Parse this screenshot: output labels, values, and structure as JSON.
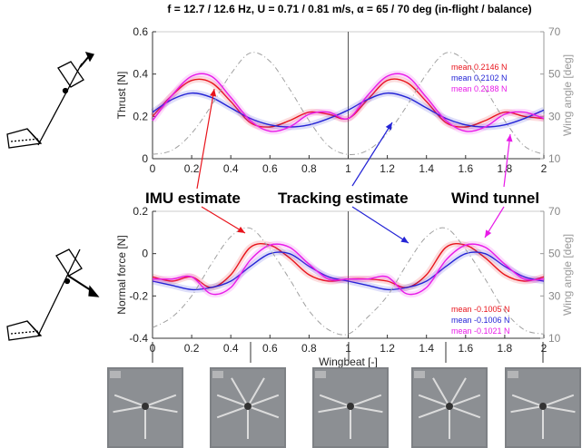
{
  "title": "f = 12.7 / 12.6 Hz, U = 0.71 / 0.81 m/s, α = 65 / 70 deg (in-flight / balance)",
  "colors": {
    "imu": "#e8141c",
    "tracking": "#2424d6",
    "wind": "#e81ae8",
    "angle": "#a0a0a0"
  },
  "annotations": {
    "imu": "IMU estimate",
    "tracking": "Tracking estimate",
    "wind": "Wind tunnel"
  },
  "chart_data": [
    {
      "type": "line",
      "ylabel": "Thrust [N]",
      "y2label": "Wing angle [deg]",
      "xlim": [
        0,
        2
      ],
      "ylim": [
        0,
        0.6
      ],
      "y2lim": [
        10,
        70
      ],
      "xticks": [
        "0",
        "0.2",
        "0.4",
        "0.6",
        "0.8",
        "1",
        "1.2",
        "1.4",
        "1.6",
        "1.8",
        "2"
      ],
      "yticks": [
        "0",
        "0.2",
        "0.4",
        "0.6"
      ],
      "y2ticks": [
        "10",
        "30",
        "50",
        "70"
      ],
      "x": [
        0,
        0.1,
        0.2,
        0.3,
        0.4,
        0.5,
        0.6,
        0.7,
        0.8,
        0.9,
        1.0,
        1.1,
        1.2,
        1.3,
        1.4,
        1.5,
        1.6,
        1.7,
        1.8,
        1.9,
        2.0
      ],
      "series": [
        {
          "key": "imu",
          "values": [
            0.2,
            0.3,
            0.37,
            0.36,
            0.27,
            0.17,
            0.15,
            0.18,
            0.22,
            0.21,
            0.19,
            0.28,
            0.37,
            0.36,
            0.27,
            0.17,
            0.15,
            0.18,
            0.22,
            0.2,
            0.19
          ]
        },
        {
          "key": "tracking",
          "values": [
            0.22,
            0.28,
            0.31,
            0.29,
            0.24,
            0.19,
            0.16,
            0.15,
            0.16,
            0.19,
            0.23,
            0.28,
            0.31,
            0.29,
            0.24,
            0.19,
            0.16,
            0.15,
            0.16,
            0.19,
            0.23
          ]
        },
        {
          "key": "wind",
          "values": [
            0.18,
            0.3,
            0.39,
            0.39,
            0.29,
            0.18,
            0.13,
            0.15,
            0.21,
            0.22,
            0.19,
            0.3,
            0.39,
            0.39,
            0.29,
            0.18,
            0.13,
            0.15,
            0.21,
            0.22,
            0.19
          ]
        },
        {
          "key": "angle",
          "axis": "y2",
          "values": [
            12,
            14,
            22,
            35,
            50,
            60,
            56,
            43,
            28,
            16,
            12,
            14,
            22,
            35,
            50,
            60,
            56,
            43,
            28,
            16,
            12
          ]
        }
      ],
      "means": [
        "mean 0.2146 N",
        "mean 0.2102 N",
        "mean 0.2188 N"
      ]
    },
    {
      "type": "line",
      "xlabel": "Wingbeat [-]",
      "ylabel": "Normal force [N]",
      "y2label": "Wing angle [deg]",
      "xlim": [
        0,
        2
      ],
      "ylim": [
        -0.4,
        0.2
      ],
      "y2lim": [
        10,
        70
      ],
      "xticks": [
        "0",
        "0.2",
        "0.4",
        "0.6",
        "0.8",
        "1",
        "1.2",
        "1.4",
        "1.6",
        "1.8",
        "2"
      ],
      "yticks": [
        "-0.4",
        "-0.2",
        "0",
        "0.2"
      ],
      "y2ticks": [
        "10",
        "30",
        "50",
        "70"
      ],
      "x": [
        0,
        0.1,
        0.2,
        0.3,
        0.4,
        0.5,
        0.6,
        0.7,
        0.8,
        0.9,
        1.0,
        1.1,
        1.2,
        1.3,
        1.4,
        1.5,
        1.6,
        1.7,
        1.8,
        1.9,
        2.0
      ],
      "series": [
        {
          "key": "imu",
          "values": [
            -0.11,
            -0.13,
            -0.11,
            -0.16,
            -0.1,
            0.03,
            0.04,
            -0.02,
            -0.1,
            -0.13,
            -0.12,
            -0.12,
            -0.13,
            -0.16,
            -0.1,
            0.03,
            0.04,
            -0.02,
            -0.1,
            -0.13,
            -0.11
          ]
        },
        {
          "key": "tracking",
          "values": [
            -0.13,
            -0.15,
            -0.17,
            -0.16,
            -0.13,
            -0.06,
            0.0,
            0.0,
            -0.06,
            -0.11,
            -0.13,
            -0.15,
            -0.17,
            -0.16,
            -0.13,
            -0.06,
            0.0,
            0.0,
            -0.06,
            -0.11,
            -0.13
          ]
        },
        {
          "key": "wind",
          "values": [
            -0.12,
            -0.12,
            -0.11,
            -0.19,
            -0.16,
            -0.03,
            0.04,
            0.03,
            -0.05,
            -0.12,
            -0.12,
            -0.12,
            -0.11,
            -0.19,
            -0.16,
            -0.03,
            0.04,
            0.03,
            -0.05,
            -0.12,
            -0.12
          ]
        },
        {
          "key": "angle",
          "axis": "y2",
          "values": [
            15,
            20,
            30,
            45,
            58,
            62,
            52,
            38,
            23,
            14,
            12,
            20,
            30,
            45,
            58,
            62,
            52,
            38,
            23,
            14,
            12
          ]
        }
      ],
      "means": [
        "mean -0.1005 N",
        "mean -0.1006 N",
        "mean -0.1021 N"
      ]
    }
  ]
}
